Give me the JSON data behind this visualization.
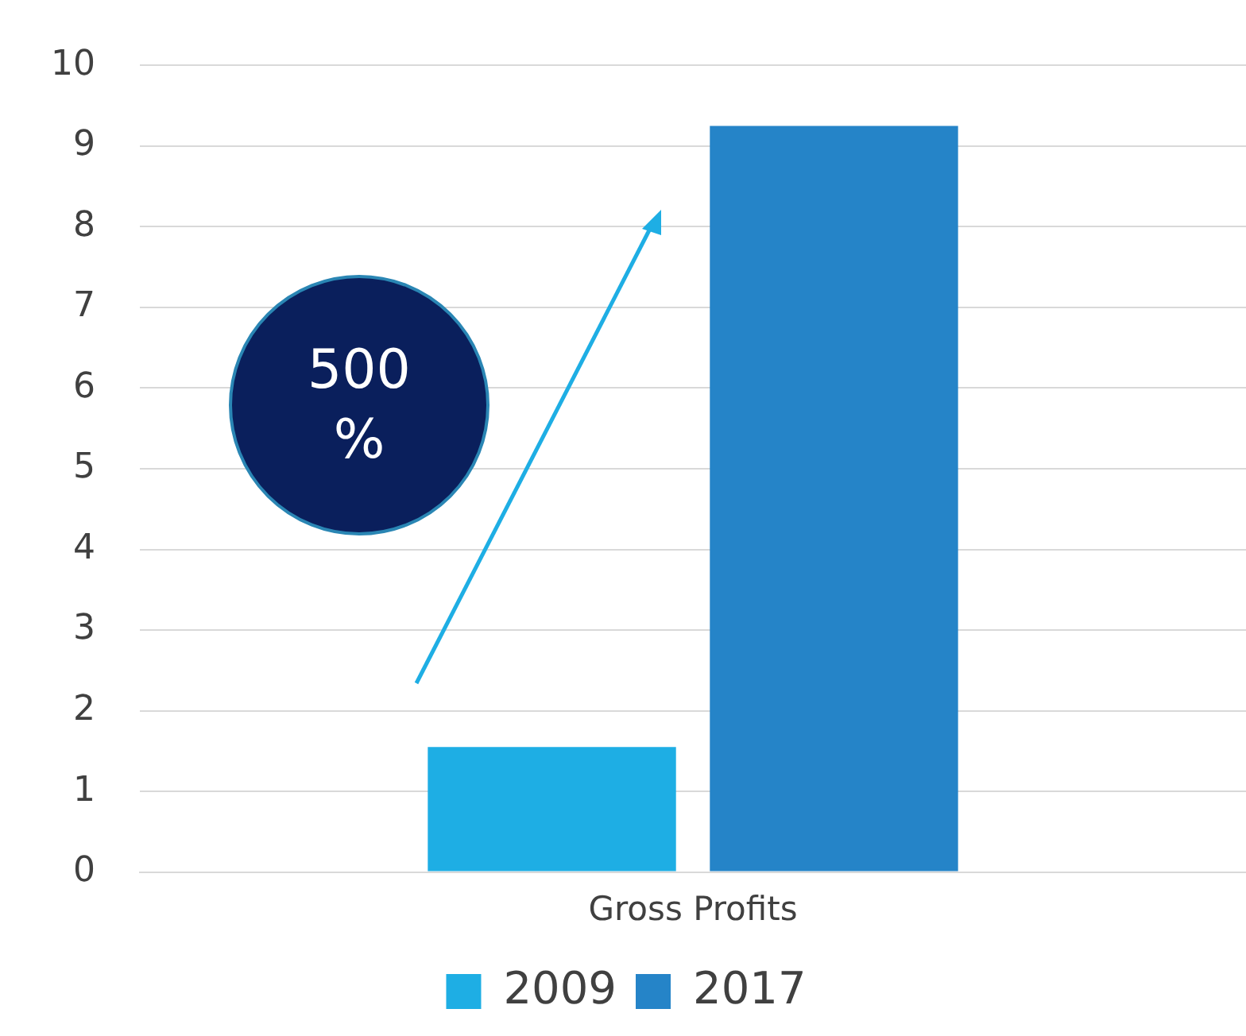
{
  "chart_data": {
    "type": "bar",
    "categories": [
      "Gross Profits"
    ],
    "series": [
      {
        "name": "2009",
        "color": "#1eaee4",
        "values": [
          1.55
        ]
      },
      {
        "name": "2017",
        "color": "#2584c8",
        "values": [
          9.25
        ]
      }
    ],
    "ylim": [
      0,
      10
    ],
    "yticks": [
      0,
      1,
      2,
      3,
      4,
      5,
      6,
      7,
      8,
      9,
      10
    ],
    "grid": "y",
    "legend": "bottom",
    "annotations": [
      "500 %"
    ]
  }
}
